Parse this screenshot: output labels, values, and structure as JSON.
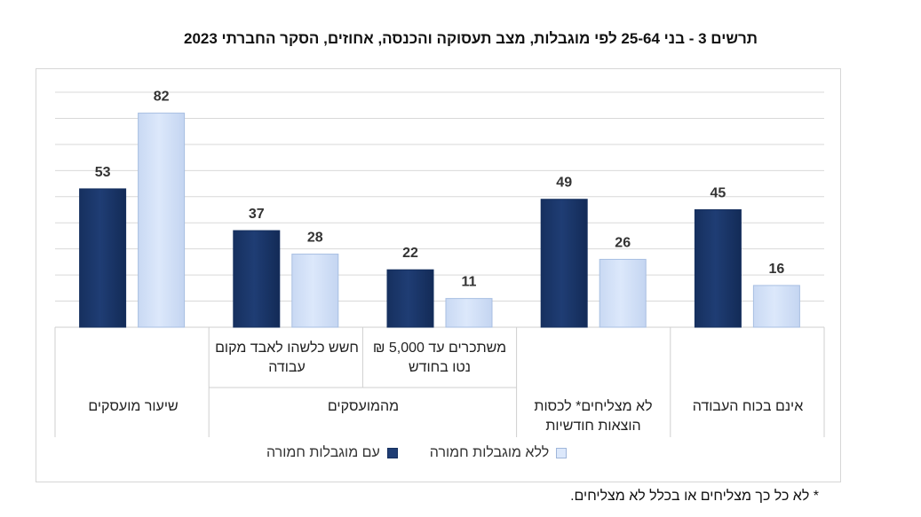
{
  "title": "תרשים 3 - בני 25-64 לפי מוגבלות, מצב תעסוקה והכנסה, אחוזים, הסקר החברתי 2023",
  "footnote": "* לא כל כך מצליחים או בכלל לא מצליחים.",
  "legend": {
    "with_label": "עם מוגבלות חמורה",
    "without_label": "ללא מוגבלות חמורה"
  },
  "colors": {
    "with": "#1f3d74",
    "without": "#dce8fb",
    "grid": "#d9d9d9"
  },
  "group_labels": {
    "g1": "שיעור מועסקים",
    "g2": "מהמועסקים"
  },
  "chart_data": {
    "type": "bar",
    "title": "תרשים 3 - בני 25-64 לפי מוגבלות, מצב תעסוקה והכנסה, אחוזים, הסקר החברתי 2023",
    "categories": [
      "שיעור מועסקים",
      "חשש כלשהו לאבד מקום עבודה",
      "משתכרים עד 5,000 ₪ נטו בחודש",
      "לא מצליחים* לכסות הוצאות חודשיות",
      "אינם בכוח העבודה"
    ],
    "series": [
      {
        "name": "עם מוגבלות חמורה",
        "values": [
          53,
          37,
          22,
          49,
          45
        ]
      },
      {
        "name": "ללא מוגבלות חמורה",
        "values": [
          82,
          28,
          11,
          26,
          16
        ]
      }
    ],
    "ylim": [
      0,
      90
    ],
    "grid": true,
    "legend_position": "bottom"
  }
}
